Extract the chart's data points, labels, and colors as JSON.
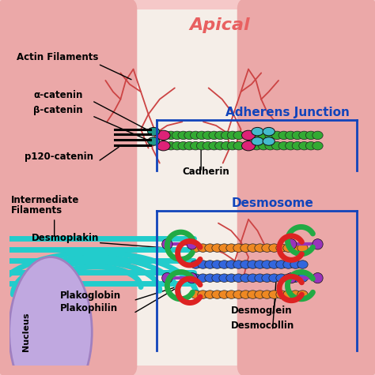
{
  "title": "Apical",
  "title_color": "#E86060",
  "bg_color": "#F5C8C8",
  "cell_color": "#EBA8A8",
  "gap_color": "#F5EEE8",
  "adherens_label": "Adherens Junction",
  "adherens_color": "#1144BB",
  "desmosome_label": "Desmosome",
  "desmosome_color": "#1144BB",
  "nucleus_color": "#A080C0",
  "nucleus_bg": "#C0A8E0",
  "green_bead": "#33AA33",
  "pink_bead": "#DD2277",
  "teal_bead": "#229988",
  "cyan_bead": "#44BBCC",
  "orange_bead": "#EE8822",
  "blue_bead": "#3366DD",
  "purple_bead": "#9933BB",
  "red_shape": "#DD2222",
  "green_shape": "#22AA44",
  "actin_color": "#CC4444",
  "intermed_color": "#22CCCC",
  "desmoplakin_color": "#BB6600",
  "black_line": "#111111"
}
